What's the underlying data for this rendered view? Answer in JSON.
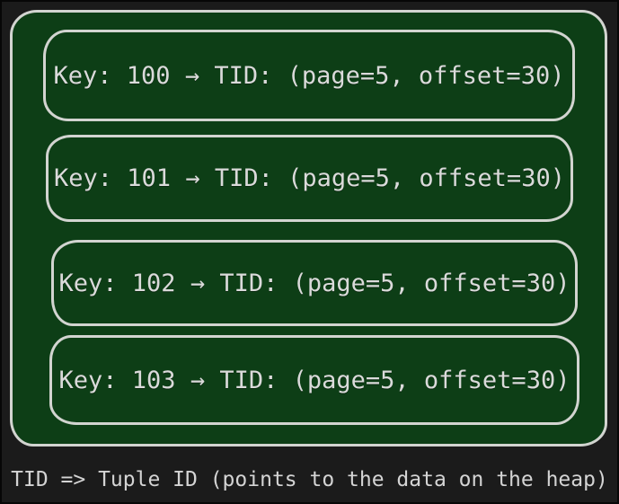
{
  "colors": {
    "page_background": "#1b1b1b",
    "panel_fill": "#0d3e16",
    "stroke": "#d2d4d0",
    "text": "#dadada"
  },
  "panel": {
    "entries": [
      {
        "key": "100",
        "tid": "(page=5, offset=30)",
        "label": "Key: 100 → TID: (page=5, offset=30)"
      },
      {
        "key": "101",
        "tid": "(page=5, offset=30)",
        "label": "Key: 101 → TID: (page=5, offset=30)"
      },
      {
        "key": "102",
        "tid": "(page=5, offset=30)",
        "label": "Key: 102 → TID: (page=5, offset=30)"
      },
      {
        "key": "103",
        "tid": "(page=5, offset=30)",
        "label": "Key: 103 → TID: (page=5, offset=30)"
      }
    ]
  },
  "caption": {
    "text": "TID => Tuple ID (points to the data on the heap)"
  }
}
